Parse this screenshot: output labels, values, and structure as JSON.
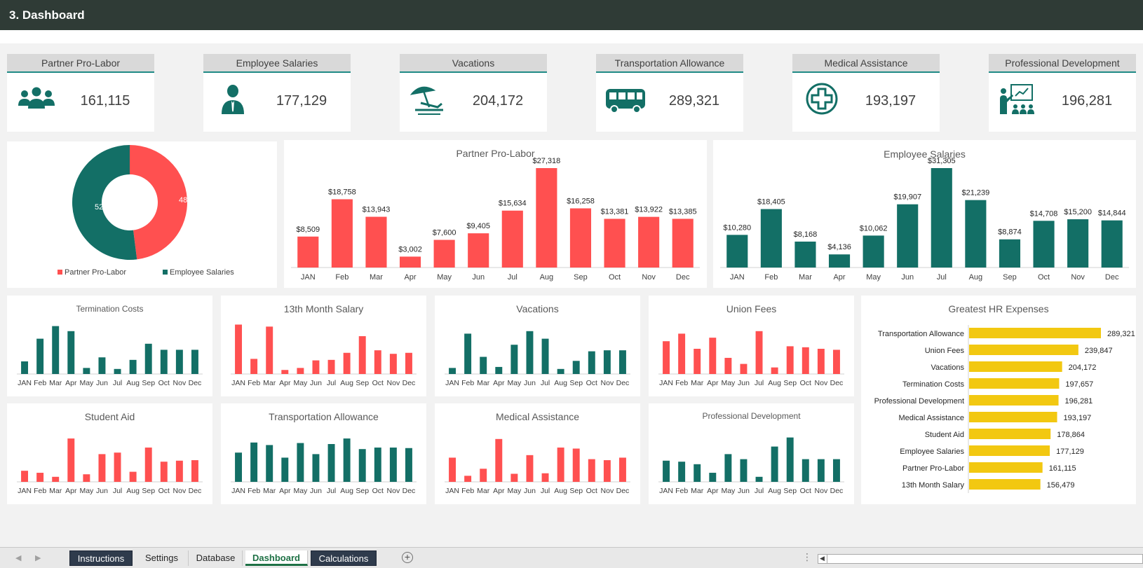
{
  "title": "3. Dashboard",
  "colors": {
    "red": "#ff5050",
    "teal": "#136f66",
    "yellow": "#f2c811",
    "header": "#2f3b36"
  },
  "kpis": [
    {
      "label": "Partner Pro-Labor",
      "value": "161,115",
      "icon": "people-group-icon"
    },
    {
      "label": "Employee Salaries",
      "value": "177,129",
      "icon": "employee-icon"
    },
    {
      "label": "Vacations",
      "value": "204,172",
      "icon": "beach-umbrella-icon"
    },
    {
      "label": "Transportation Allowance",
      "value": "289,321",
      "icon": "bus-icon"
    },
    {
      "label": "Medical Assistance",
      "value": "193,197",
      "icon": "medical-cross-icon"
    },
    {
      "label": "Professional Development",
      "value": "196,281",
      "icon": "presentation-icon"
    }
  ],
  "chart_data": [
    {
      "id": "donut",
      "type": "pie",
      "hole": true,
      "legend_position": "bottom",
      "labels": [
        "Partner Pro-Labor",
        "Employee Salaries"
      ],
      "values": [
        48,
        52
      ],
      "value_labels": [
        "48%",
        "52%"
      ],
      "colors": [
        "#ff5050",
        "#136f66"
      ]
    },
    {
      "id": "partner",
      "type": "bar",
      "title": "Partner Pro-Labor",
      "color": "#ff5050",
      "categories": [
        "JAN",
        "Feb",
        "Mar",
        "Apr",
        "May",
        "Jun",
        "Jul",
        "Aug",
        "Sep",
        "Oct",
        "Nov",
        "Dec"
      ],
      "values": [
        8509,
        18758,
        13943,
        3002,
        7600,
        9405,
        15634,
        27318,
        16258,
        13381,
        13922,
        13385
      ],
      "value_labels": [
        "$8,509",
        "$18,758",
        "$13,943",
        "$3,002",
        "$7,600",
        "$9,405",
        "$15,634",
        "$27,318",
        "$16,258",
        "$13,381",
        "$13,922",
        "$13,385"
      ],
      "ylim": [
        0,
        27318
      ]
    },
    {
      "id": "employee",
      "type": "bar",
      "title": "Employee Salaries",
      "color": "#136f66",
      "categories": [
        "JAN",
        "Feb",
        "Mar",
        "Apr",
        "May",
        "Jun",
        "Jul",
        "Aug",
        "Sep",
        "Oct",
        "Nov",
        "Dec"
      ],
      "values": [
        10280,
        18405,
        8168,
        4136,
        10062,
        19907,
        31305,
        21239,
        8874,
        14708,
        15200,
        14844
      ],
      "value_labels": [
        "$10,280",
        "$18,405",
        "$8,168",
        "$4,136",
        "$10,062",
        "$19,907",
        "$31,305",
        "$21,239",
        "$8,874",
        "$14,708",
        "$15,200",
        "$14,844"
      ],
      "ylim": [
        0,
        31305
      ]
    },
    {
      "id": "termination",
      "type": "bar",
      "title": "Termination Costs",
      "color": "#136f66",
      "categories": [
        "JAN",
        "Feb",
        "Mar",
        "Apr",
        "May",
        "Jun",
        "Jul",
        "Aug",
        "Sep",
        "Oct",
        "Nov",
        "Dec"
      ],
      "values": [
        25,
        70,
        95,
        85,
        12,
        33,
        10,
        28,
        60,
        48,
        48,
        48
      ],
      "ylim": [
        0,
        100
      ]
    },
    {
      "id": "month13",
      "type": "bar",
      "title": "13th Month Salary",
      "color": "#ff5050",
      "categories": [
        "JAN",
        "Feb",
        "Mar",
        "Apr",
        "May",
        "Jun",
        "Jul",
        "Aug",
        "Sep",
        "Oct",
        "Nov",
        "Dec"
      ],
      "values": [
        98,
        30,
        94,
        8,
        12,
        27,
        28,
        42,
        75,
        47,
        40,
        42
      ],
      "ylim": [
        0,
        100
      ]
    },
    {
      "id": "vacations",
      "type": "bar",
      "title": "Vacations",
      "color": "#136f66",
      "categories": [
        "JAN",
        "Feb",
        "Mar",
        "Apr",
        "May",
        "Jun",
        "Jul",
        "Aug",
        "Sep",
        "Oct",
        "Nov",
        "Dec"
      ],
      "values": [
        12,
        80,
        34,
        14,
        58,
        85,
        70,
        10,
        26,
        45,
        47,
        47
      ],
      "ylim": [
        0,
        100
      ]
    },
    {
      "id": "union",
      "type": "bar",
      "title": "Union Fees",
      "color": "#ff5050",
      "categories": [
        "JAN",
        "Feb",
        "Mar",
        "Apr",
        "May",
        "Jun",
        "Jul",
        "Aug",
        "Sep",
        "Oct",
        "Nov",
        "Dec"
      ],
      "values": [
        65,
        80,
        50,
        72,
        32,
        20,
        85,
        13,
        55,
        53,
        50,
        48
      ],
      "ylim": [
        0,
        100
      ]
    },
    {
      "id": "student",
      "type": "bar",
      "title": "Student Aid",
      "color": "#ff5050",
      "categories": [
        "JAN",
        "Feb",
        "Mar",
        "Apr",
        "May",
        "Jun",
        "Jul",
        "Aug",
        "Sep",
        "Oct",
        "Nov",
        "Dec"
      ],
      "values": [
        22,
        18,
        10,
        86,
        15,
        55,
        58,
        20,
        68,
        40,
        42,
        43
      ],
      "ylim": [
        0,
        100
      ]
    },
    {
      "id": "transport",
      "type": "bar",
      "title": "Transportation Allowance",
      "color": "#136f66",
      "categories": [
        "JAN",
        "Feb",
        "Mar",
        "Apr",
        "May",
        "Jun",
        "Jul",
        "Aug",
        "Sep",
        "Oct",
        "Nov",
        "Dec"
      ],
      "values": [
        58,
        78,
        73,
        48,
        77,
        55,
        75,
        86,
        65,
        68,
        68,
        67
      ],
      "ylim": [
        0,
        100
      ]
    },
    {
      "id": "medical",
      "type": "bar",
      "title": "Medical Assistance",
      "color": "#ff5050",
      "categories": [
        "JAN",
        "Feb",
        "Mar",
        "Apr",
        "May",
        "Jun",
        "Jul",
        "Aug",
        "Sep",
        "Oct",
        "Nov",
        "Dec"
      ],
      "values": [
        48,
        12,
        26,
        85,
        16,
        53,
        17,
        68,
        66,
        45,
        43,
        48
      ],
      "ylim": [
        0,
        100
      ]
    },
    {
      "id": "profdev",
      "type": "bar",
      "title": "Professional Development",
      "color": "#136f66",
      "categories": [
        "JAN",
        "Feb",
        "Mar",
        "Apr",
        "May",
        "Jun",
        "Jul",
        "Aug",
        "Sep",
        "Oct",
        "Nov",
        "Dec"
      ],
      "values": [
        42,
        40,
        35,
        18,
        55,
        45,
        10,
        70,
        88,
        45,
        45,
        45
      ],
      "ylim": [
        0,
        100
      ]
    },
    {
      "id": "greatest",
      "type": "bar",
      "orientation": "horizontal",
      "title": "Greatest HR Expenses",
      "color": "#f2c811",
      "categories": [
        "Transportation Allowance",
        "Union Fees",
        "Vacations",
        "Termination Costs",
        "Professional Development",
        "Medical Assistance",
        "Student Aid",
        "Employee Salaries",
        "Partner Pro-Labor",
        "13th Month Salary"
      ],
      "values": [
        289321,
        239847,
        204172,
        197657,
        196281,
        193197,
        178864,
        177129,
        161115,
        156479
      ],
      "value_labels": [
        "289,321",
        "239,847",
        "204,172",
        "197,657",
        "196,281",
        "193,197",
        "178,864",
        "177,129",
        "161,115",
        "156,479"
      ],
      "xlim": [
        0,
        289321
      ]
    }
  ],
  "sheet_tabs": [
    "Instructions",
    "Settings",
    "Database",
    "Dashboard",
    "Calculations"
  ],
  "active_tab": "Dashboard"
}
